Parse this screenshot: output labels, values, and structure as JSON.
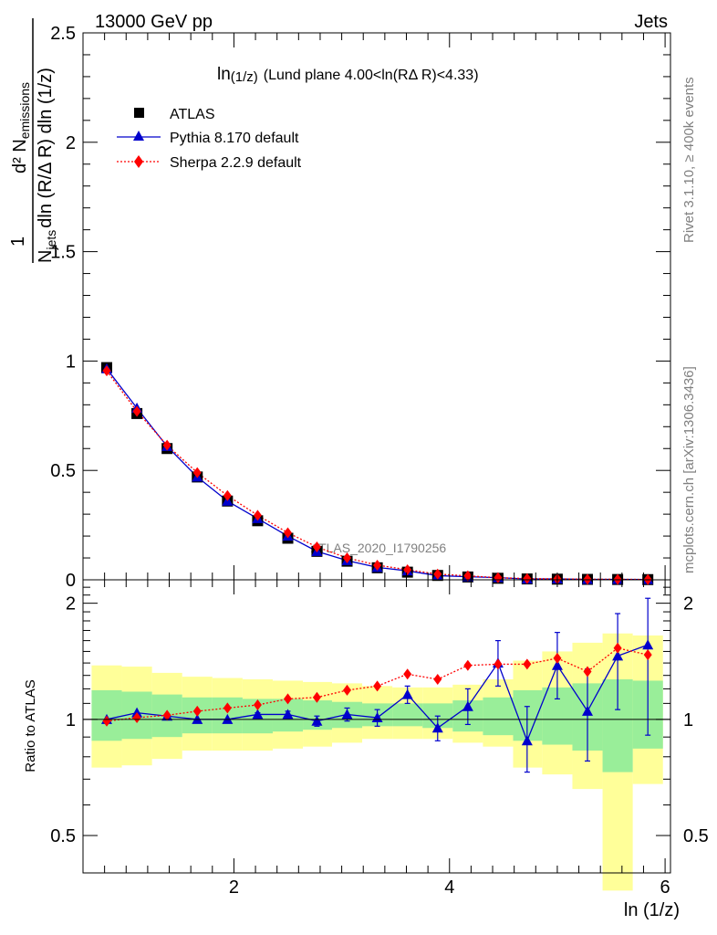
{
  "header": {
    "left": "13000 GeV pp",
    "right": "Jets"
  },
  "side_labels": {
    "rivet": "Rivet 3.1.10, ≥ 400k events",
    "mcplots": "mcplots.cern.ch [arXiv:1306.3436]"
  },
  "watermark": "ATLAS_2020_I1790256",
  "colors": {
    "atlas": "#000000",
    "pythia": "#0000cc",
    "sherpa": "#ff0000",
    "band_outer": "#ffff99",
    "band_inner": "#99ee99"
  },
  "chart_data": [
    {
      "type": "line",
      "panel": "main",
      "title_main": "ln",
      "title_sub": "(1/z)",
      "title_rest": "(Lund plane 4.00<ln(RΔ R)<4.33)",
      "ylabel": "1/N_jets d²N_emissions / dln(R/Δ R) dln(1/z)",
      "ylabel_parts": {
        "one": "1",
        "d2": "d² N",
        "emissions": "emissions",
        "njets_n": "N",
        "njets_sub": "jets",
        "denominator": "dln (R/Δ R) dln (1/z)"
      },
      "ylim": [
        0,
        2.5
      ],
      "yticks": [
        0,
        0.5,
        1,
        1.5,
        2,
        2.5
      ],
      "ytick_labels": [
        "0",
        "0.5",
        "1",
        "1.5",
        "2",
        "2.5"
      ],
      "x": [
        0.82,
        1.1,
        1.38,
        1.66,
        1.94,
        2.22,
        2.5,
        2.77,
        3.05,
        3.33,
        3.61,
        3.89,
        4.17,
        4.45,
        4.72,
        5.0,
        5.28,
        5.56,
        5.84
      ],
      "series": [
        {
          "name": "ATLAS",
          "marker": "square",
          "values": [
            0.97,
            0.76,
            0.6,
            0.47,
            0.36,
            0.27,
            0.19,
            0.13,
            0.085,
            0.055,
            0.035,
            0.02,
            0.013,
            0.007,
            0.004,
            0.003,
            0.002,
            0.0015,
            0.001
          ]
        },
        {
          "name": "Pythia 8.170 default",
          "marker": "triangle",
          "values": [
            0.965,
            0.785,
            0.61,
            0.47,
            0.36,
            0.28,
            0.2,
            0.13,
            0.088,
            0.057,
            0.041,
            0.019,
            0.014,
            0.01,
            0.0035,
            0.004,
            0.0022,
            0.0022,
            0.0016
          ]
        },
        {
          "name": "Sherpa 2.2.9 default",
          "marker": "diamond",
          "values": [
            0.955,
            0.77,
            0.615,
            0.49,
            0.385,
            0.295,
            0.215,
            0.15,
            0.1,
            0.067,
            0.046,
            0.026,
            0.018,
            0.0098,
            0.0056,
            0.0043,
            0.0027,
            0.0023,
            0.0015
          ]
        }
      ]
    },
    {
      "type": "line",
      "panel": "ratio",
      "ylabel": "Ratio to ATLAS",
      "xlabel": "ln (1/z)",
      "ylim": [
        0.4,
        2.3
      ],
      "xlim": [
        0.6,
        6.05
      ],
      "xticks": [
        2,
        4,
        6
      ],
      "xtick_labels": [
        "2",
        "4",
        "6"
      ],
      "yticks": [
        0.5,
        1,
        2
      ],
      "ytick_labels": [
        "0.5",
        "1",
        "2"
      ],
      "x_edges": [
        0.68,
        0.96,
        1.24,
        1.52,
        1.8,
        2.08,
        2.36,
        2.64,
        2.91,
        3.19,
        3.47,
        3.75,
        4.03,
        4.31,
        4.59,
        4.86,
        5.14,
        5.42,
        5.7,
        5.98
      ],
      "bands": {
        "outer_low": [
          0.75,
          0.76,
          0.79,
          0.83,
          0.83,
          0.83,
          0.84,
          0.85,
          0.87,
          0.89,
          0.89,
          0.89,
          0.87,
          0.85,
          0.75,
          0.72,
          0.66,
          0.36,
          0.68
        ],
        "outer_high": [
          1.38,
          1.37,
          1.32,
          1.29,
          1.28,
          1.27,
          1.26,
          1.25,
          1.24,
          1.22,
          1.21,
          1.21,
          1.23,
          1.27,
          1.42,
          1.5,
          1.58,
          1.67,
          1.65
        ],
        "inner_low": [
          0.88,
          0.89,
          0.9,
          0.92,
          0.92,
          0.92,
          0.93,
          0.94,
          0.95,
          0.96,
          0.96,
          0.95,
          0.93,
          0.91,
          0.88,
          0.86,
          0.83,
          0.73,
          0.84
        ],
        "inner_high": [
          1.19,
          1.18,
          1.16,
          1.14,
          1.14,
          1.13,
          1.13,
          1.12,
          1.11,
          1.1,
          1.1,
          1.1,
          1.12,
          1.14,
          1.19,
          1.21,
          1.24,
          1.27,
          1.26
        ]
      },
      "series": [
        {
          "name": "Pythia 8.170 default",
          "values": [
            1.0,
            1.04,
            1.02,
            1.0,
            1.0,
            1.03,
            1.03,
            0.99,
            1.03,
            1.01,
            1.16,
            0.95,
            1.08,
            1.4,
            0.88,
            1.38,
            1.05,
            1.46,
            1.56
          ],
          "err_low": [
            0,
            0,
            0,
            0,
            0,
            0.01,
            0.02,
            0.03,
            0.04,
            0.05,
            0.06,
            0.07,
            0.11,
            0.18,
            0.15,
            0.25,
            0.27,
            0.4,
            0.65
          ],
          "err_high": [
            0,
            0,
            0,
            0,
            0,
            0.01,
            0.02,
            0.03,
            0.04,
            0.05,
            0.06,
            0.07,
            0.12,
            0.2,
            0.2,
            0.3,
            0.3,
            0.42,
            0.5
          ]
        },
        {
          "name": "Sherpa 2.2.9 default",
          "values": [
            0.99,
            1.01,
            1.025,
            1.05,
            1.07,
            1.09,
            1.13,
            1.14,
            1.19,
            1.22,
            1.31,
            1.27,
            1.38,
            1.39,
            1.39,
            1.44,
            1.33,
            1.53,
            1.47
          ]
        }
      ]
    }
  ]
}
